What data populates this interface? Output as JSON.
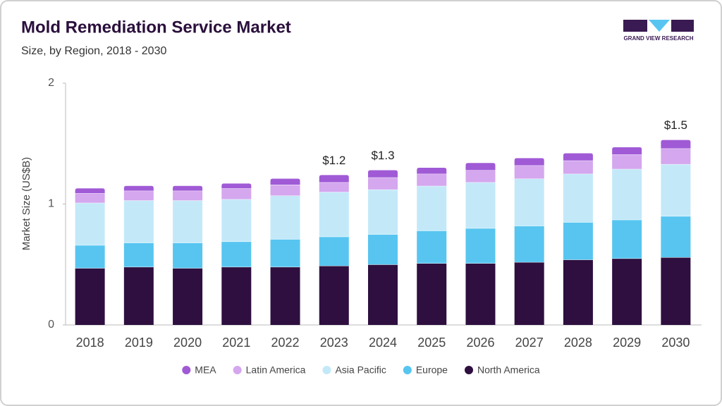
{
  "brand": {
    "name": "GRAND VIEW RESEARCH"
  },
  "chart_data": {
    "type": "stacked-bar",
    "title": "Mold Remediation Service Market",
    "subtitle": "Size, by Region, 2018 - 2030",
    "y_label": "Market Size (US$B)",
    "categories": [
      "2018",
      "2019",
      "2020",
      "2021",
      "2022",
      "2023",
      "2024",
      "2025",
      "2026",
      "2027",
      "2028",
      "2029",
      "2030"
    ],
    "ylim": [
      0,
      2
    ],
    "yticks": [
      0,
      1,
      2
    ],
    "series": [
      {
        "name": "MEA",
        "color": "#a05ad6",
        "values": [
          0.04,
          0.04,
          0.04,
          0.04,
          0.05,
          0.06,
          0.06,
          0.05,
          0.06,
          0.06,
          0.06,
          0.06,
          0.07
        ]
      },
      {
        "name": "Latin America",
        "color": "#d4a7ee",
        "values": [
          0.08,
          0.08,
          0.08,
          0.09,
          0.09,
          0.08,
          0.1,
          0.1,
          0.1,
          0.11,
          0.11,
          0.12,
          0.13
        ]
      },
      {
        "name": "Asia Pacific",
        "color": "#c3e9f9",
        "values": [
          0.35,
          0.35,
          0.35,
          0.35,
          0.36,
          0.37,
          0.37,
          0.37,
          0.38,
          0.39,
          0.4,
          0.42,
          0.43
        ]
      },
      {
        "name": "Europe",
        "color": "#57c5f0",
        "values": [
          0.19,
          0.2,
          0.21,
          0.21,
          0.23,
          0.24,
          0.25,
          0.27,
          0.29,
          0.3,
          0.31,
          0.32,
          0.34
        ]
      },
      {
        "name": "North America",
        "color": "#2e0f3f",
        "values": [
          0.47,
          0.48,
          0.47,
          0.48,
          0.48,
          0.49,
          0.5,
          0.51,
          0.51,
          0.52,
          0.54,
          0.55,
          0.56
        ]
      }
    ],
    "totals": {
      "values": [
        null,
        null,
        null,
        null,
        null,
        1.24,
        1.28,
        null,
        null,
        null,
        null,
        null,
        1.53
      ],
      "value_labels": [
        null,
        null,
        null,
        null,
        null,
        "$1.2",
        "$1.3",
        null,
        null,
        null,
        null,
        null,
        "$1.5"
      ]
    },
    "legend": "bottom"
  }
}
